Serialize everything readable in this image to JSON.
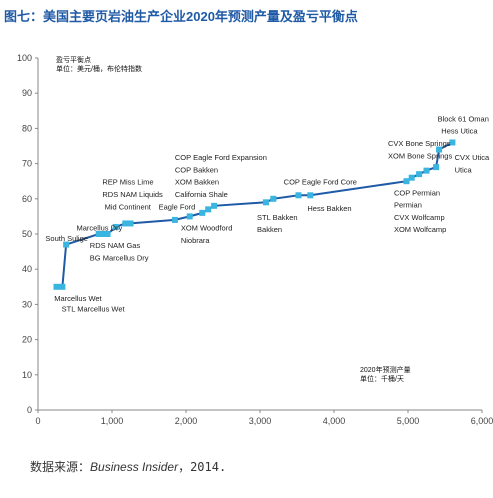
{
  "figure": {
    "title": "图七：美国主要页岩油生产企业2020年预测产量及盈亏平衡点",
    "source_prefix": "数据来源：",
    "source_name": "Business Insider",
    "source_suffix": "，2014."
  },
  "chart_data": {
    "type": "line",
    "title": "",
    "xlabel": "",
    "ylabel": "",
    "xlim": [
      0,
      6000
    ],
    "ylim": [
      0,
      100
    ],
    "xticks": [
      0,
      1000,
      2000,
      3000,
      4000,
      5000,
      6000
    ],
    "xtick_labels": [
      "0",
      "1,000",
      "2,000",
      "3,000",
      "4,000",
      "5,000",
      "6,000"
    ],
    "yticks": [
      0,
      10,
      20,
      30,
      40,
      50,
      60,
      70,
      80,
      90,
      100
    ],
    "ytick_labels": [
      "0",
      "10",
      "20",
      "30",
      "40",
      "50",
      "60",
      "70",
      "80",
      "90",
      "100"
    ],
    "grid": false,
    "line_color": "#1f5aa6",
    "marker_color": "#39b5e0",
    "annotations": {
      "top_left": [
        "盈亏平衡点",
        "单位：美元/桶，布伦特指数"
      ],
      "bottom_right": [
        "2020年预测产量",
        "单位：千桶/天"
      ]
    },
    "series": [
      {
        "points": [
          {
            "x": 250,
            "y": 35
          },
          {
            "x": 330,
            "y": 35
          },
          {
            "x": 380,
            "y": 47
          },
          {
            "x": 820,
            "y": 50
          },
          {
            "x": 880,
            "y": 50
          },
          {
            "x": 940,
            "y": 50
          },
          {
            "x": 1050,
            "y": 52
          },
          {
            "x": 1180,
            "y": 53
          },
          {
            "x": 1250,
            "y": 53
          },
          {
            "x": 1850,
            "y": 54
          },
          {
            "x": 2050,
            "y": 55
          },
          {
            "x": 2220,
            "y": 56
          },
          {
            "x": 2300,
            "y": 57
          },
          {
            "x": 2380,
            "y": 58
          },
          {
            "x": 3080,
            "y": 59
          },
          {
            "x": 3180,
            "y": 60
          },
          {
            "x": 3520,
            "y": 61
          },
          {
            "x": 3680,
            "y": 61
          },
          {
            "x": 4980,
            "y": 65
          },
          {
            "x": 5050,
            "y": 66
          },
          {
            "x": 5150,
            "y": 67
          },
          {
            "x": 5250,
            "y": 68
          },
          {
            "x": 5380,
            "y": 69
          },
          {
            "x": 5420,
            "y": 74
          },
          {
            "x": 5600,
            "y": 76
          }
        ]
      }
    ],
    "point_labels": [
      {
        "text": "Marcellus Wet",
        "x": 220,
        "y": 31
      },
      {
        "text": "STL Marcellus Wet",
        "x": 320,
        "y": 28
      },
      {
        "text": "South Sulige",
        "x": 100,
        "y": 48
      },
      {
        "text": "Marcellus Dry",
        "x": 520,
        "y": 51
      },
      {
        "text": "RDS NAM Gas",
        "x": 700,
        "y": 46
      },
      {
        "text": "BG Marcellus Dry",
        "x": 700,
        "y": 42.5
      },
      {
        "text": "REP Miss Lime",
        "x": 870,
        "y": 64
      },
      {
        "text": "RDS NAM Liquids",
        "x": 870,
        "y": 60.5
      },
      {
        "text": "Mid Continent",
        "x": 900,
        "y": 57
      },
      {
        "text": "Eagle Ford",
        "x": 1630,
        "y": 57
      },
      {
        "text": "COP Eagle Ford Expansion",
        "x": 1850,
        "y": 71
      },
      {
        "text": "COP Bakken",
        "x": 1850,
        "y": 67.5
      },
      {
        "text": "XOM Bakken",
        "x": 1850,
        "y": 64
      },
      {
        "text": "California Shale",
        "x": 1850,
        "y": 60.5
      },
      {
        "text": "XOM Woodford",
        "x": 1930,
        "y": 51
      },
      {
        "text": "Niobrara",
        "x": 1930,
        "y": 47.5
      },
      {
        "text": "STL Bakken",
        "x": 2960,
        "y": 54
      },
      {
        "text": "Bakken",
        "x": 2960,
        "y": 50.5
      },
      {
        "text": "COP Eagle Ford Core",
        "x": 3320,
        "y": 64
      },
      {
        "text": "Hess Bakken",
        "x": 3640,
        "y": 56.5
      },
      {
        "text": "Block 61 Oman",
        "x": 5400,
        "y": 82
      },
      {
        "text": "Hess Utica",
        "x": 5450,
        "y": 78.5
      },
      {
        "text": "CVX Bone Springs",
        "x": 4730,
        "y": 75
      },
      {
        "text": "XOM Bone Springs",
        "x": 4730,
        "y": 71.5
      },
      {
        "text": "CVX Utica",
        "x": 5630,
        "y": 71
      },
      {
        "text": "Utica",
        "x": 5630,
        "y": 67.5
      },
      {
        "text": "COP Permian",
        "x": 4810,
        "y": 61
      },
      {
        "text": "Permian",
        "x": 4810,
        "y": 57.5
      },
      {
        "text": "CVX Wolfcamp",
        "x": 4810,
        "y": 54
      },
      {
        "text": "XOM Wolfcamp",
        "x": 4810,
        "y": 50.5
      }
    ]
  }
}
